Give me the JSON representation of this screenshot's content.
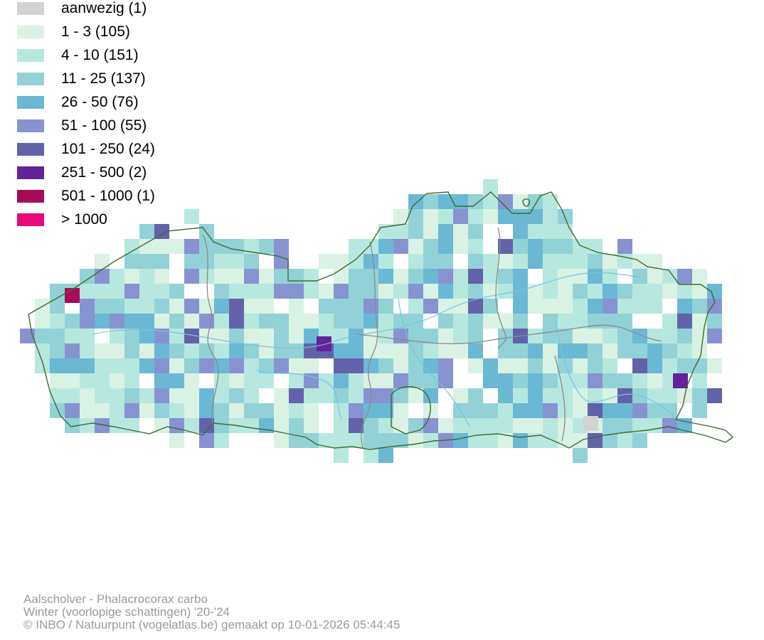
{
  "legend": {
    "items": [
      {
        "label": "aanwezig (1)",
        "color": "#d3d3d3"
      },
      {
        "label": "1 - 3 (105)",
        "color": "#d9f2e4"
      },
      {
        "label": "4 - 10 (151)",
        "color": "#b6e8df"
      },
      {
        "label": "11 - 25 (137)",
        "color": "#92d2d6"
      },
      {
        "label": "26 - 50 (76)",
        "color": "#6bb8d4"
      },
      {
        "label": "51 - 100 (55)",
        "color": "#8793d1"
      },
      {
        "label": "101 - 250 (24)",
        "color": "#6262a8"
      },
      {
        "label": "251 - 500 (2)",
        "color": "#64229a"
      },
      {
        "label": "501 - 1000 (1)",
        "color": "#a80a5a"
      },
      {
        "label": "> 1000",
        "color": "#e8087a"
      }
    ]
  },
  "map": {
    "border_color": "#3f6b2e",
    "province_border_color": "#8a8a8a",
    "river_color": "#6fc6e0"
  },
  "credits": {
    "species": "Aalscholver - Phalacrocorax carbo",
    "season": "Winter (voorlopige schattingen) '20-'24",
    "copyright": "© INBO / Natuurpunt (vogelatlas.be) gemaakt op 10-01-2026 05:44:45"
  }
}
